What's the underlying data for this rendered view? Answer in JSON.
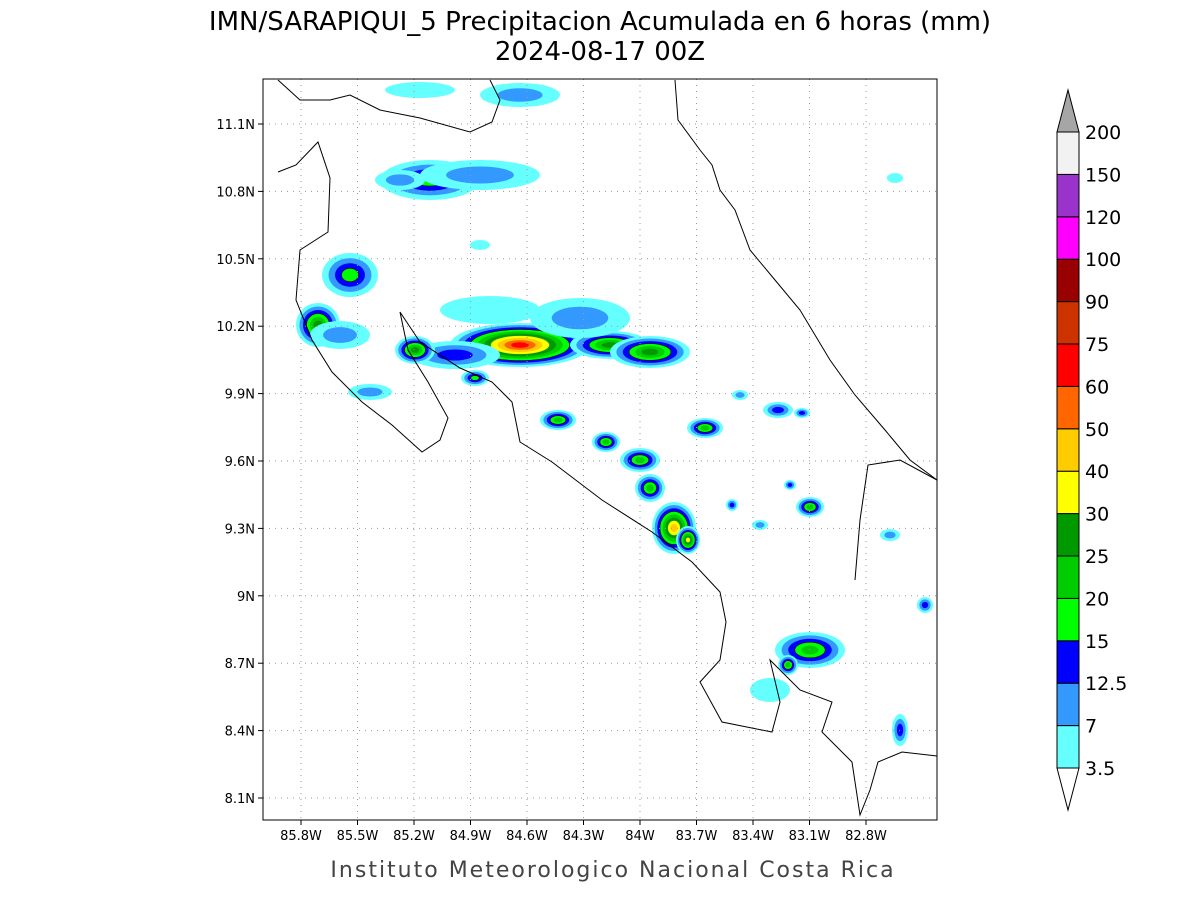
{
  "title": "IMN/SARAPIQUI_5 Precipitacion Acumulada en 6 horas (mm)",
  "subtitle": "2024-08-17 00Z",
  "footer": "Instituto Meteorologico Nacional Costa Rica",
  "map": {
    "lat_ticks": [
      "11.1N",
      "10.8N",
      "10.5N",
      "10.2N",
      "9.9N",
      "9.6N",
      "9.3N",
      "9N",
      "8.7N",
      "8.4N",
      "8.1N"
    ],
    "lon_ticks": [
      "85.8W",
      "85.5W",
      "85.2W",
      "84.9W",
      "84.6W",
      "84.3W",
      "84W",
      "83.7W",
      "83.4W",
      "83.1W",
      "82.8W"
    ]
  },
  "colorbar": {
    "levels": [
      3.5,
      7,
      12.5,
      15,
      20,
      25,
      30,
      40,
      50,
      60,
      75,
      90,
      100,
      120,
      150,
      200
    ],
    "colors": [
      "#66ffff",
      "#3399ff",
      "#0000ff",
      "#00ff00",
      "#00cc00",
      "#009900",
      "#ffff00",
      "#ffcc00",
      "#ff6600",
      "#ff0000",
      "#cc3300",
      "#990000",
      "#ff00ff",
      "#9933cc",
      "#f2f2f2"
    ],
    "under_color": "#ffffff",
    "over_color": "#a6a6a6"
  }
}
